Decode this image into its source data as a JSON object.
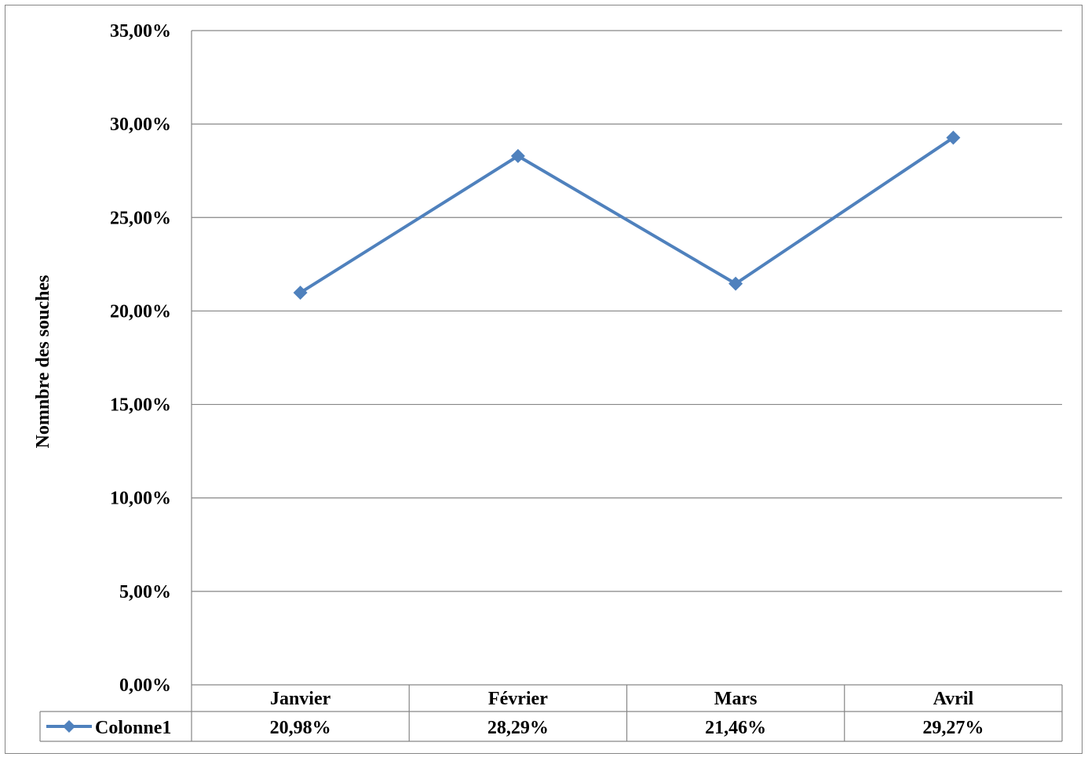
{
  "chart_data": {
    "type": "line",
    "title": "",
    "xlabel": "",
    "ylabel": "Nombre des souches",
    "ylabel_display": "Nomnbre des souches",
    "categories": [
      "Janvier",
      "Février",
      "Mars",
      "Avril"
    ],
    "ylim": [
      0,
      35
    ],
    "yticks": [
      0,
      5,
      10,
      15,
      20,
      25,
      30,
      35
    ],
    "ytick_labels": [
      "0,00%",
      "5,00%",
      "10,00%",
      "15,00%",
      "20,00%",
      "25,00%",
      "30,00%",
      "35,00%"
    ],
    "grid": true,
    "legend": "data-table",
    "series": [
      {
        "name": "Colonne1",
        "values": [
          20.98,
          28.29,
          21.46,
          29.27
        ],
        "value_labels": [
          "20,98%",
          "28,29%",
          "21,46%",
          "29,27%"
        ],
        "color": "#4F81BD",
        "marker": "diamond"
      }
    ]
  }
}
